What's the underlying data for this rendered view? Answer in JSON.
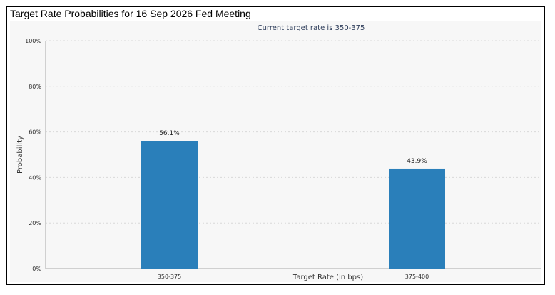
{
  "header": {
    "title": "Target Rate Probabilities for 16 Sep 2026 Fed Meeting"
  },
  "colors": {
    "bar": "#2a7fba",
    "grid": "#d8d8d8",
    "axis": "#aaaaaa",
    "text": "#333333",
    "subtitle": "#2f3e5b",
    "background": "#f7f7f7"
  },
  "chart_data": {
    "type": "bar",
    "subtitle": "Current target rate is 350-375",
    "xlabel": "Target Rate (in bps)",
    "ylabel": "Probability",
    "categories": [
      "350-375",
      "375-400"
    ],
    "values": [
      56.1,
      43.9
    ],
    "data_labels": [
      "56.1%",
      "43.9%"
    ],
    "ylim": [
      0,
      100
    ],
    "yticks": [
      0,
      20,
      40,
      60,
      80,
      100
    ],
    "ytick_labels": [
      "0%",
      "20%",
      "40%",
      "60%",
      "80%",
      "100%"
    ],
    "grid": true,
    "legend": "none"
  }
}
